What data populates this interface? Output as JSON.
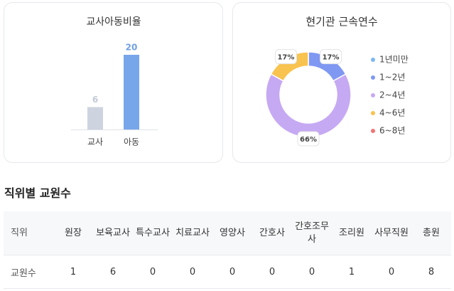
{
  "chart_data": [
    {
      "type": "bar",
      "title": "교사아동비율",
      "categories": [
        "교사",
        "아동"
      ],
      "values": [
        6,
        20
      ],
      "colors": [
        "#cdd3df",
        "#78a6ea"
      ],
      "label_colors": [
        "#c3c9d6",
        "#6f9fe6"
      ]
    },
    {
      "type": "pie",
      "title": "현기관 근속연수",
      "categories": [
        "1년미만",
        "1~2년",
        "2~4년",
        "4~6년",
        "6~8년"
      ],
      "values": [
        0,
        17,
        66,
        17,
        0
      ],
      "value_labels": [
        null,
        "17%",
        "66%",
        "17%",
        null
      ],
      "colors": [
        "#7cb7f2",
        "#7f98f2",
        "#c6a9f3",
        "#f8c34f",
        "#f07474"
      ],
      "legend": "right"
    }
  ],
  "section_title": "직위별 교원수",
  "table": {
    "header": [
      "직위",
      "원장",
      "보육교사",
      "특수교사",
      "치료교사",
      "영양사",
      "간호사",
      "간호조무사",
      "조리원",
      "사무직원",
      "총원"
    ],
    "rows": [
      [
        "교원수",
        1,
        6,
        0,
        0,
        0,
        0,
        0,
        1,
        0,
        8
      ]
    ]
  }
}
